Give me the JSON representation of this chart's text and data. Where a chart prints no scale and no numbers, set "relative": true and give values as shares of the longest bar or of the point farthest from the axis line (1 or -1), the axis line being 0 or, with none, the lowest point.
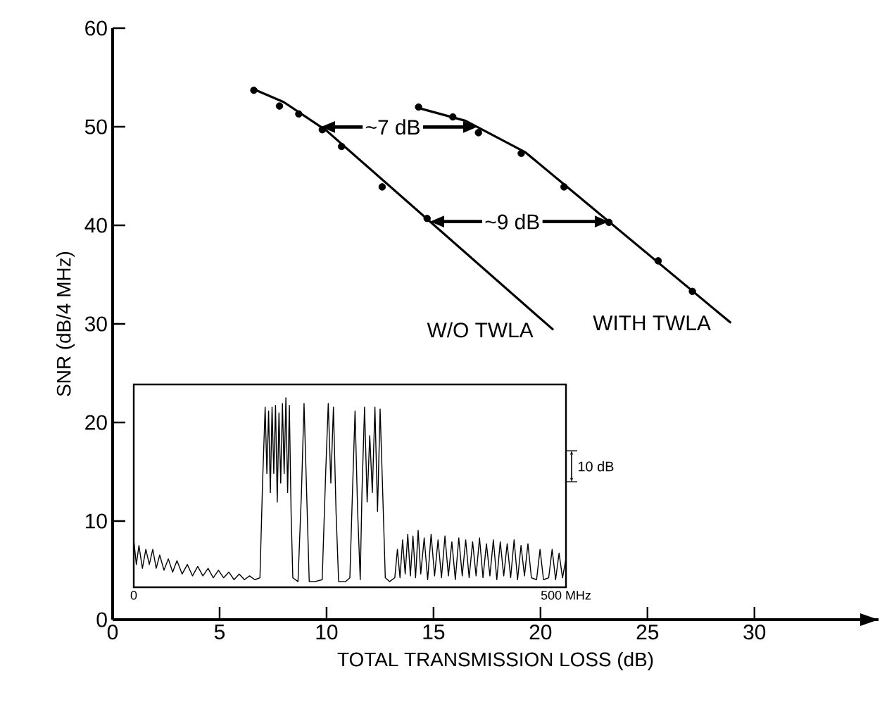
{
  "chart_data": [
    {
      "type": "scatter",
      "xlabel": "TOTAL TRANSMISSION LOSS (dB)",
      "ylabel": "SNR (dB/4 MHz)",
      "xlim": [
        0,
        35.8
      ],
      "ylim": [
        0,
        60
      ],
      "xticks": [
        0,
        5,
        10,
        15,
        20,
        25,
        30
      ],
      "yticks": [
        0,
        10,
        20,
        30,
        40,
        50,
        60
      ],
      "series": [
        {
          "type": "scatter",
          "color": "#000000",
          "marker": "circle",
          "x": [
            6.6,
            7.8,
            8.7,
            9.8,
            10.7,
            12.6,
            14.7
          ],
          "values": [
            53.7,
            52.1,
            51.3,
            49.7,
            48.0,
            43.9,
            40.7
          ]
        },
        {
          "type": "line",
          "name": "W/O TWLA",
          "color": "#000000",
          "marker": "none",
          "x": [
            6.6,
            8.0,
            10.0,
            20.6
          ],
          "values": [
            53.8,
            52.5,
            49.6,
            29.4
          ]
        },
        {
          "type": "scatter",
          "color": "#000000",
          "marker": "circle",
          "x": [
            14.3,
            15.9,
            17.1,
            19.1,
            21.1,
            23.2,
            25.5,
            27.1
          ],
          "values": [
            52.0,
            51.0,
            49.4,
            47.3,
            43.9,
            40.3,
            36.4,
            33.3
          ]
        },
        {
          "type": "line",
          "name": "WITH TWLA",
          "color": "#000000",
          "marker": "none",
          "x": [
            14.3,
            16.5,
            19.3,
            28.9
          ],
          "values": [
            51.9,
            50.6,
            47.4,
            30.1
          ]
        }
      ],
      "annotations": [
        "~7 dB",
        "~9 dB"
      ]
    },
    {
      "type": "line",
      "relative": true,
      "color": "#000000",
      "xlim": [
        0,
        500
      ],
      "xticks": [
        0,
        {
          "value": 500,
          "label": "500 MHz"
        }
      ],
      "tick_labels": "x",
      "annotations": [
        "10 dB"
      ],
      "x": [
        0,
        3,
        6,
        10,
        14,
        18,
        22,
        26,
        30,
        35,
        40,
        45,
        50,
        56,
        62,
        68,
        74,
        80,
        86,
        92,
        98,
        104,
        110,
        116,
        122,
        128,
        134,
        140,
        146,
        149,
        152,
        154,
        156,
        158,
        160,
        162,
        164,
        166,
        168,
        170,
        172,
        174,
        176,
        178,
        180,
        182,
        184,
        190,
        194,
        197,
        200,
        203,
        210,
        218,
        222,
        225,
        228,
        231,
        234,
        237,
        245,
        250,
        253,
        256,
        259,
        262,
        264,
        267,
        270,
        273,
        276,
        279,
        282,
        285,
        288,
        291,
        296,
        302,
        305,
        308,
        311,
        314,
        317,
        320,
        323,
        326,
        329,
        332,
        336,
        340,
        344,
        348,
        352,
        356,
        360,
        364,
        368,
        372,
        376,
        380,
        384,
        388,
        392,
        396,
        400,
        404,
        408,
        412,
        416,
        420,
        424,
        428,
        432,
        436,
        440,
        444,
        448,
        452,
        456,
        460,
        466,
        470,
        474,
        480,
        484,
        488,
        492,
        496,
        500
      ],
      "values": [
        0.25,
        0.12,
        0.22,
        0.1,
        0.2,
        0.12,
        0.2,
        0.1,
        0.17,
        0.09,
        0.15,
        0.08,
        0.14,
        0.07,
        0.12,
        0.06,
        0.11,
        0.06,
        0.1,
        0.05,
        0.09,
        0.05,
        0.08,
        0.04,
        0.07,
        0.04,
        0.06,
        0.04,
        0.05,
        0.55,
        0.95,
        0.6,
        0.93,
        0.5,
        0.95,
        0.6,
        0.96,
        0.45,
        0.92,
        0.55,
        0.97,
        0.6,
        1.0,
        0.5,
        0.96,
        0.4,
        0.05,
        0.03,
        0.5,
        0.97,
        0.5,
        0.03,
        0.03,
        0.04,
        0.6,
        0.97,
        0.55,
        0.95,
        0.4,
        0.03,
        0.03,
        0.05,
        0.5,
        0.93,
        0.4,
        0.04,
        0.5,
        0.95,
        0.45,
        0.8,
        0.5,
        0.95,
        0.4,
        0.94,
        0.5,
        0.05,
        0.03,
        0.05,
        0.2,
        0.05,
        0.25,
        0.07,
        0.28,
        0.06,
        0.27,
        0.05,
        0.3,
        0.07,
        0.26,
        0.04,
        0.28,
        0.06,
        0.25,
        0.05,
        0.27,
        0.06,
        0.24,
        0.04,
        0.26,
        0.06,
        0.25,
        0.05,
        0.24,
        0.06,
        0.26,
        0.05,
        0.23,
        0.06,
        0.25,
        0.04,
        0.24,
        0.06,
        0.23,
        0.05,
        0.25,
        0.04,
        0.22,
        0.06,
        0.23,
        0.05,
        0.04,
        0.2,
        0.04,
        0.05,
        0.2,
        0.04,
        0.18,
        0.05,
        0.15
      ]
    }
  ]
}
